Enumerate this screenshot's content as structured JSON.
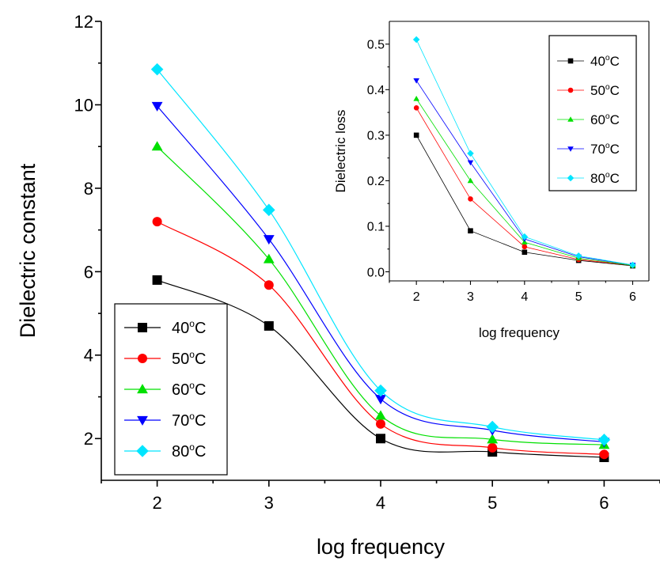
{
  "chart_data": [
    {
      "type": "line",
      "title": "",
      "xlabel": "log frequency",
      "ylabel": "Dielectric constant",
      "xlim": [
        1.5,
        6.5
      ],
      "ylim": [
        1,
        12
      ],
      "x_ticks": [
        "2",
        "3",
        "4",
        "5",
        "6"
      ],
      "y_ticks": [
        "2",
        "4",
        "6",
        "8",
        "10",
        "12"
      ],
      "x": [
        2,
        3,
        4,
        5,
        6
      ],
      "legend_position": "bottom-left",
      "grid": false,
      "series": [
        {
          "name": "40°C",
          "label_base": "40",
          "label_sup": "o",
          "label_tail": "C",
          "color": "#000000",
          "marker": "square",
          "values": [
            5.8,
            4.7,
            2.0,
            1.68,
            1.55
          ]
        },
        {
          "name": "50°C",
          "label_base": "50",
          "label_sup": "o",
          "label_tail": "C",
          "color": "#ff0000",
          "marker": "circle",
          "values": [
            7.2,
            5.68,
            2.35,
            1.78,
            1.62
          ]
        },
        {
          "name": "60°C",
          "label_base": "60",
          "label_sup": "o",
          "label_tail": "C",
          "color": "#00e000",
          "marker": "triangle-up",
          "values": [
            9.0,
            6.3,
            2.55,
            1.98,
            1.85
          ]
        },
        {
          "name": "70°C",
          "label_base": "70",
          "label_sup": "o",
          "label_tail": "C",
          "color": "#0000ff",
          "marker": "triangle-down",
          "values": [
            9.97,
            6.78,
            2.95,
            2.2,
            1.92
          ]
        },
        {
          "name": "80°C",
          "label_base": "80",
          "label_sup": "o",
          "label_tail": "C",
          "color": "#00e5ff",
          "marker": "diamond",
          "values": [
            10.85,
            7.48,
            3.15,
            2.28,
            1.97
          ]
        }
      ]
    },
    {
      "type": "line",
      "title": "",
      "xlabel": "log frequency",
      "ylabel": "Dielectric loss",
      "xlim": [
        1.5,
        6.3
      ],
      "ylim": [
        -0.02,
        0.55
      ],
      "x_ticks": [
        "2",
        "3",
        "4",
        "5",
        "6"
      ],
      "y_ticks": [
        "0.0",
        "0.1",
        "0.2",
        "0.3",
        "0.4",
        "0.5"
      ],
      "x": [
        2,
        3,
        4,
        5,
        6
      ],
      "legend_position": "top-right",
      "grid": false,
      "series": [
        {
          "name": "40°C",
          "label_base": "40",
          "label_sup": "o",
          "label_tail": "C",
          "color": "#000000",
          "marker": "square",
          "values": [
            0.3,
            0.09,
            0.043,
            0.025,
            0.013
          ]
        },
        {
          "name": "50°C",
          "label_base": "50",
          "label_sup": "o",
          "label_tail": "C",
          "color": "#ff0000",
          "marker": "circle",
          "values": [
            0.36,
            0.16,
            0.055,
            0.027,
            0.014
          ]
        },
        {
          "name": "60°C",
          "label_base": "60",
          "label_sup": "o",
          "label_tail": "C",
          "color": "#00e000",
          "marker": "triangle-up",
          "values": [
            0.38,
            0.2,
            0.065,
            0.03,
            0.014
          ]
        },
        {
          "name": "70°C",
          "label_base": "70",
          "label_sup": "o",
          "label_tail": "C",
          "color": "#0000ff",
          "marker": "triangle-down",
          "values": [
            0.42,
            0.24,
            0.072,
            0.033,
            0.015
          ]
        },
        {
          "name": "80°C",
          "label_base": "80",
          "label_sup": "o",
          "label_tail": "C",
          "color": "#00e5ff",
          "marker": "diamond",
          "values": [
            0.51,
            0.26,
            0.077,
            0.035,
            0.015
          ]
        }
      ]
    }
  ]
}
